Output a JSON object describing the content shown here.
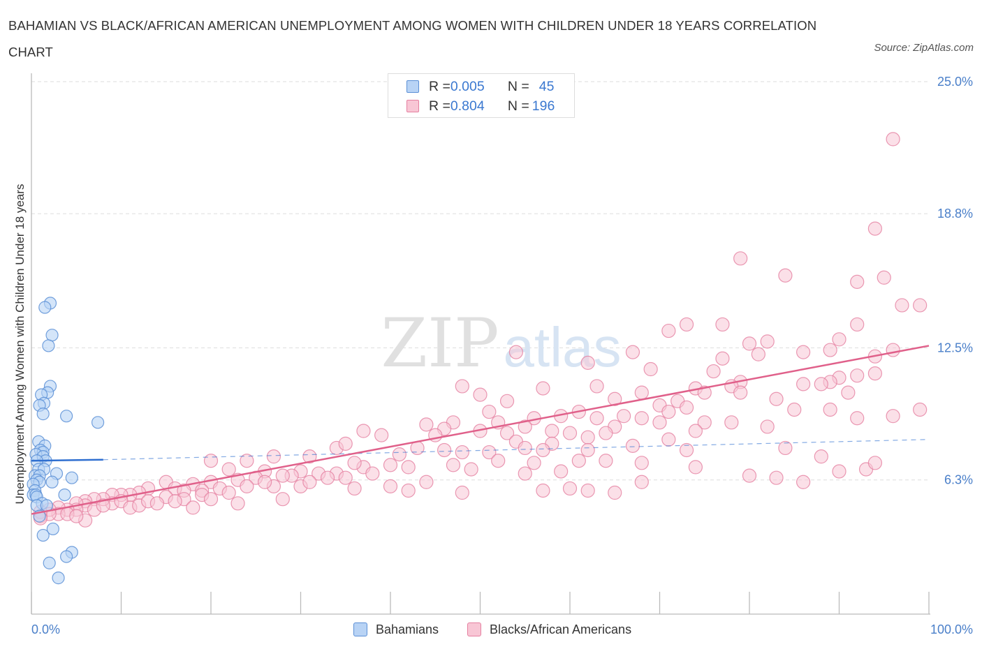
{
  "header": {
    "title": "BAHAMIAN VS BLACK/AFRICAN AMERICAN UNEMPLOYMENT AMONG WOMEN WITH CHILDREN UNDER 18 YEARS CORRELATION CHART",
    "source": "Source: ZipAtlas.com"
  },
  "watermark": {
    "zip": "ZIP",
    "atlas": "atlas"
  },
  "stats_legend": {
    "rows": [
      {
        "r_label": "R = ",
        "r_value": "0.005",
        "n_label": "N = ",
        "n_value": "45",
        "color": "#9ec2f0"
      },
      {
        "r_label": "R = ",
        "r_value": "0.804",
        "n_label": "N = ",
        "n_value": "196",
        "color": "#f5b8cb"
      }
    ]
  },
  "colors": {
    "bahamians_fill": "#b8d3f5",
    "bahamians_stroke": "#5b8fd6",
    "black_fill": "#f8c6d5",
    "black_stroke": "#e57fa0",
    "bahamians_line": "#2f6fd0",
    "black_line": "#e0608a",
    "axis_text": "#4a7fc9",
    "grid": "#dddddd"
  },
  "chart_data": {
    "type": "scatter",
    "title": "BAHAMIAN VS BLACK/AFRICAN AMERICAN UNEMPLOYMENT AMONG WOMEN WITH CHILDREN UNDER 18 YEARS CORRELATION CHART",
    "xlabel": "",
    "ylabel": "Unemployment Among Women with Children Under 18 years",
    "xlim": [
      0,
      100
    ],
    "ylim": [
      0,
      25
    ],
    "x_tick_labels": [
      "0.0%",
      "100.0%"
    ],
    "y_tick_labels": [
      "6.3%",
      "12.5%",
      "18.8%",
      "25.0%"
    ],
    "y_ticks": [
      6.3,
      12.5,
      18.8,
      25.0
    ],
    "grid": true,
    "legend_position": "bottom-center",
    "series": [
      {
        "name": "Bahamians",
        "R": 0.005,
        "N": 45,
        "trend": {
          "x": [
            0,
            8
          ],
          "y": [
            7.2,
            7.25
          ],
          "dashed_extension_to_x": 100,
          "dashed_end_y": 8.2
        },
        "points": [
          [
            2.1,
            14.6
          ],
          [
            1.5,
            14.4
          ],
          [
            2.3,
            13.1
          ],
          [
            1.9,
            12.6
          ],
          [
            2.1,
            10.7
          ],
          [
            1.8,
            10.4
          ],
          [
            1.1,
            10.3
          ],
          [
            1.4,
            9.9
          ],
          [
            0.9,
            9.8
          ],
          [
            1.3,
            9.4
          ],
          [
            3.9,
            9.3
          ],
          [
            7.4,
            9.0
          ],
          [
            0.8,
            8.1
          ],
          [
            1.5,
            7.9
          ],
          [
            1.0,
            7.7
          ],
          [
            1.3,
            7.6
          ],
          [
            0.5,
            7.5
          ],
          [
            1.3,
            7.4
          ],
          [
            1.6,
            7.2
          ],
          [
            0.6,
            7.2
          ],
          [
            0.8,
            6.8
          ],
          [
            1.4,
            6.8
          ],
          [
            2.8,
            6.6
          ],
          [
            0.4,
            6.5
          ],
          [
            0.9,
            6.5
          ],
          [
            4.5,
            6.4
          ],
          [
            0.6,
            6.3
          ],
          [
            0.9,
            6.2
          ],
          [
            2.3,
            6.2
          ],
          [
            0.2,
            6.1
          ],
          [
            0.4,
            5.8
          ],
          [
            0.2,
            5.6
          ],
          [
            0.5,
            5.6
          ],
          [
            3.7,
            5.6
          ],
          [
            0.6,
            5.5
          ],
          [
            1.2,
            5.2
          ],
          [
            0.6,
            5.1
          ],
          [
            1.7,
            5.1
          ],
          [
            0.9,
            4.6
          ],
          [
            2.4,
            4.0
          ],
          [
            1.3,
            3.7
          ],
          [
            4.5,
            2.9
          ],
          [
            3.9,
            2.7
          ],
          [
            2.0,
            2.4
          ],
          [
            3.0,
            1.7
          ]
        ]
      },
      {
        "name": "Blacks/African Americans",
        "R": 0.804,
        "N": 196,
        "trend": {
          "x": [
            0,
            100
          ],
          "y": [
            4.7,
            12.6
          ]
        },
        "points": [
          [
            96,
            22.3
          ],
          [
            94,
            18.1
          ],
          [
            79,
            16.7
          ],
          [
            84,
            15.9
          ],
          [
            95,
            15.8
          ],
          [
            92,
            15.6
          ],
          [
            97,
            14.5
          ],
          [
            99,
            14.5
          ],
          [
            92,
            13.6
          ],
          [
            73,
            13.6
          ],
          [
            77,
            13.6
          ],
          [
            90,
            12.9
          ],
          [
            89,
            12.4
          ],
          [
            80,
            12.7
          ],
          [
            71,
            13.3
          ],
          [
            82,
            12.8
          ],
          [
            96,
            12.4
          ],
          [
            86,
            12.3
          ],
          [
            94,
            12.1
          ],
          [
            54,
            12.3
          ],
          [
            67,
            12.3
          ],
          [
            81,
            12.2
          ],
          [
            77,
            12.0
          ],
          [
            62,
            11.8
          ],
          [
            76,
            11.4
          ],
          [
            69,
            11.5
          ],
          [
            94,
            11.3
          ],
          [
            92,
            11.2
          ],
          [
            90,
            11.1
          ],
          [
            89,
            10.9
          ],
          [
            79,
            10.9
          ],
          [
            86,
            10.8
          ],
          [
            88,
            10.8
          ],
          [
            78,
            10.7
          ],
          [
            74,
            10.6
          ],
          [
            63,
            10.7
          ],
          [
            57,
            10.6
          ],
          [
            48,
            10.7
          ],
          [
            68,
            10.4
          ],
          [
            75,
            10.4
          ],
          [
            79,
            10.4
          ],
          [
            83,
            10.1
          ],
          [
            91,
            10.4
          ],
          [
            72,
            10.0
          ],
          [
            65,
            10.1
          ],
          [
            50,
            10.3
          ],
          [
            53,
            10.0
          ],
          [
            70,
            9.8
          ],
          [
            73,
            9.7
          ],
          [
            85,
            9.6
          ],
          [
            99,
            9.6
          ],
          [
            89,
            9.6
          ],
          [
            71,
            9.5
          ],
          [
            92,
            9.2
          ],
          [
            96,
            9.3
          ],
          [
            61,
            9.5
          ],
          [
            63,
            9.2
          ],
          [
            66,
            9.3
          ],
          [
            68,
            9.2
          ],
          [
            75,
            9.0
          ],
          [
            78,
            9.0
          ],
          [
            70,
            9.0
          ],
          [
            51,
            9.5
          ],
          [
            59,
            9.3
          ],
          [
            56,
            9.2
          ],
          [
            52,
            9.0
          ],
          [
            82,
            8.8
          ],
          [
            74,
            8.6
          ],
          [
            47,
            9.0
          ],
          [
            44,
            8.9
          ],
          [
            55,
            8.8
          ],
          [
            65,
            8.8
          ],
          [
            58,
            8.6
          ],
          [
            60,
            8.5
          ],
          [
            64,
            8.5
          ],
          [
            37,
            8.6
          ],
          [
            46,
            8.7
          ],
          [
            50,
            8.6
          ],
          [
            53,
            8.5
          ],
          [
            45,
            8.4
          ],
          [
            39,
            8.4
          ],
          [
            62,
            8.3
          ],
          [
            71,
            8.2
          ],
          [
            54,
            8.1
          ],
          [
            58,
            8.0
          ],
          [
            55,
            7.8
          ],
          [
            67,
            7.9
          ],
          [
            73,
            7.7
          ],
          [
            62,
            7.7
          ],
          [
            57,
            7.7
          ],
          [
            51,
            7.6
          ],
          [
            48,
            7.6
          ],
          [
            46,
            7.7
          ],
          [
            43,
            7.8
          ],
          [
            41,
            7.5
          ],
          [
            34,
            7.8
          ],
          [
            35,
            8.0
          ],
          [
            31,
            7.4
          ],
          [
            27,
            7.4
          ],
          [
            24,
            7.2
          ],
          [
            20,
            7.2
          ],
          [
            61,
            7.2
          ],
          [
            64,
            7.2
          ],
          [
            68,
            7.1
          ],
          [
            56,
            7.1
          ],
          [
            52,
            7.2
          ],
          [
            40,
            7.0
          ],
          [
            42,
            6.9
          ],
          [
            37,
            6.9
          ],
          [
            36,
            7.1
          ],
          [
            47,
            7.0
          ],
          [
            49,
            6.8
          ],
          [
            59,
            6.7
          ],
          [
            55,
            6.6
          ],
          [
            22,
            6.8
          ],
          [
            26,
            6.7
          ],
          [
            34,
            6.6
          ],
          [
            38,
            6.6
          ],
          [
            30,
            6.7
          ],
          [
            29,
            6.5
          ],
          [
            32,
            6.6
          ],
          [
            28,
            6.5
          ],
          [
            33,
            6.4
          ],
          [
            35,
            6.4
          ],
          [
            25,
            6.4
          ],
          [
            23,
            6.3
          ],
          [
            20,
            6.2
          ],
          [
            18,
            6.1
          ],
          [
            15,
            6.2
          ],
          [
            16,
            5.9
          ],
          [
            27,
            6.0
          ],
          [
            30,
            6.0
          ],
          [
            31,
            6.2
          ],
          [
            26,
            6.2
          ],
          [
            24,
            6.0
          ],
          [
            21,
            5.9
          ],
          [
            19,
            5.8
          ],
          [
            17,
            5.8
          ],
          [
            13,
            5.9
          ],
          [
            12,
            5.7
          ],
          [
            11,
            5.6
          ],
          [
            10,
            5.6
          ],
          [
            9,
            5.6
          ],
          [
            9,
            5.2
          ],
          [
            8,
            5.4
          ],
          [
            7,
            5.4
          ],
          [
            6,
            5.3
          ],
          [
            6,
            5.1
          ],
          [
            5,
            5.2
          ],
          [
            5,
            4.9
          ],
          [
            4,
            4.9
          ],
          [
            3,
            5.0
          ],
          [
            3,
            4.7
          ],
          [
            2,
            4.9
          ],
          [
            2,
            4.7
          ],
          [
            1,
            4.6
          ],
          [
            1,
            4.8
          ],
          [
            1,
            4.5
          ],
          [
            4,
            4.7
          ],
          [
            7,
            4.9
          ],
          [
            8,
            5.1
          ],
          [
            10,
            5.3
          ],
          [
            11,
            5.0
          ],
          [
            12,
            5.1
          ],
          [
            13,
            5.3
          ],
          [
            15,
            5.5
          ],
          [
            17,
            5.4
          ],
          [
            19,
            5.6
          ],
          [
            14,
            5.2
          ],
          [
            16,
            5.3
          ],
          [
            18,
            5.0
          ],
          [
            20,
            5.4
          ],
          [
            23,
            5.2
          ],
          [
            22,
            5.7
          ],
          [
            28,
            5.4
          ],
          [
            36,
            5.9
          ],
          [
            40,
            6.0
          ],
          [
            44,
            6.2
          ],
          [
            48,
            5.7
          ],
          [
            42,
            5.8
          ],
          [
            57,
            5.8
          ],
          [
            60,
            5.9
          ],
          [
            62,
            5.8
          ],
          [
            65,
            5.7
          ],
          [
            68,
            6.2
          ],
          [
            74,
            6.9
          ],
          [
            80,
            6.5
          ],
          [
            83,
            6.4
          ],
          [
            86,
            6.2
          ],
          [
            90,
            6.7
          ],
          [
            93,
            6.8
          ],
          [
            94,
            7.1
          ],
          [
            88,
            7.4
          ],
          [
            84,
            7.8
          ],
          [
            6,
            4.4
          ],
          [
            5,
            4.6
          ]
        ]
      }
    ]
  },
  "bottom_legend": {
    "items": [
      {
        "label": "Bahamians"
      },
      {
        "label": "Blacks/African Americans"
      }
    ]
  }
}
